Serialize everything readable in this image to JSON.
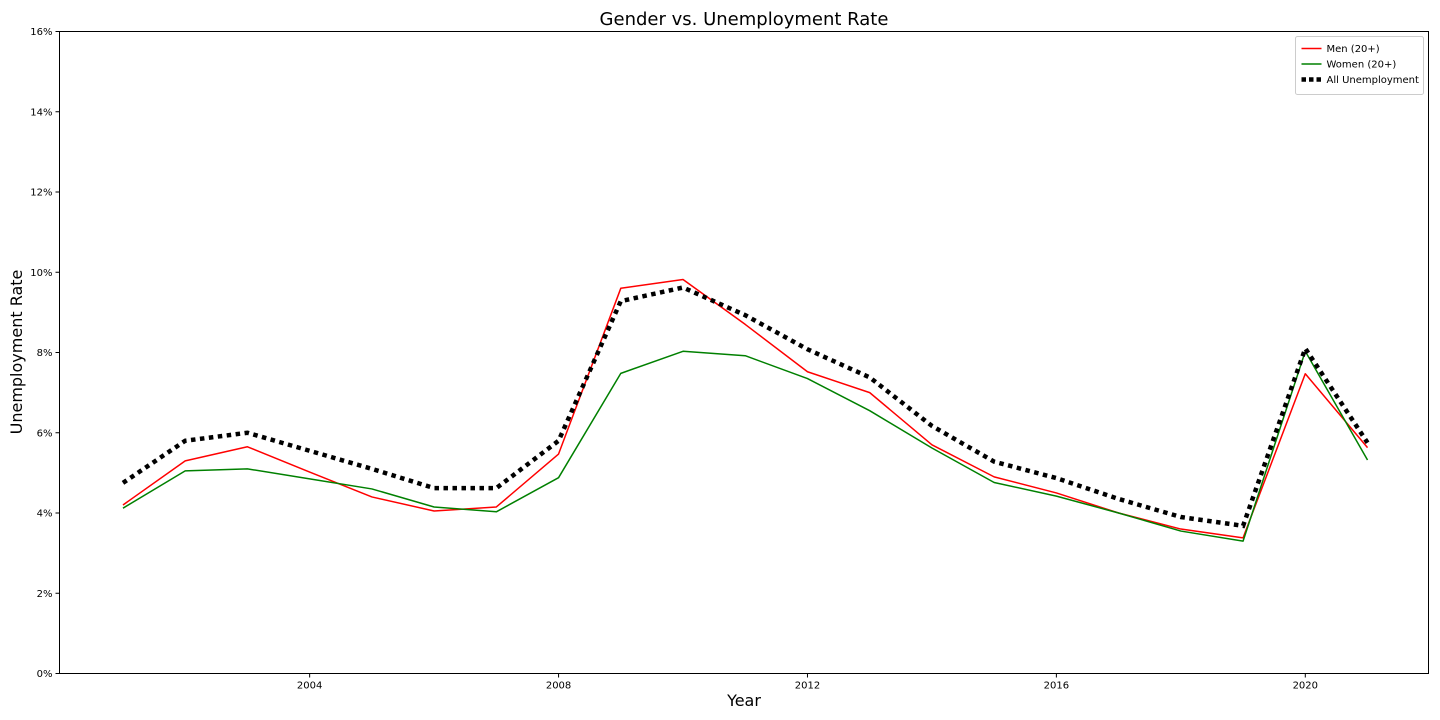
{
  "chart_data": {
    "type": "line",
    "title": "Gender vs. Unemployment Rate",
    "xlabel": "Year",
    "ylabel": "Unemployment Rate",
    "x": [
      2001,
      2002,
      2003,
      2004,
      2005,
      2006,
      2007,
      2008,
      2009,
      2010,
      2011,
      2012,
      2013,
      2014,
      2015,
      2016,
      2017,
      2018,
      2019,
      2020,
      2021
    ],
    "xlim": [
      1999.98,
      2021.98
    ],
    "ylim": [
      0,
      16
    ],
    "xticks": [
      2004,
      2008,
      2012,
      2016,
      2020
    ],
    "xtick_labels": [
      "2004",
      "2008",
      "2012",
      "2016",
      "2020"
    ],
    "yticks": [
      0,
      2,
      4,
      6,
      8,
      10,
      12,
      14,
      16
    ],
    "ytick_labels": [
      "0%",
      "2%",
      "4%",
      "6%",
      "8%",
      "10%",
      "12%",
      "14%",
      "16%"
    ],
    "grid": false,
    "legend_position": "top-right",
    "series": [
      {
        "name": "Men (20+)",
        "color": "#ff0000",
        "style": "solid",
        "values": [
          4.2,
          5.3,
          5.65,
          5.02,
          4.4,
          4.05,
          4.15,
          5.47,
          9.6,
          9.82,
          8.7,
          7.52,
          7.0,
          5.7,
          4.9,
          4.5,
          4.0,
          3.6,
          3.38,
          7.47,
          5.63
        ]
      },
      {
        "name": "Women (20+)",
        "color": "#008000",
        "style": "solid",
        "values": [
          4.12,
          5.05,
          5.1,
          4.85,
          4.6,
          4.15,
          4.03,
          4.88,
          7.48,
          8.03,
          7.92,
          7.35,
          6.55,
          5.62,
          4.76,
          4.42,
          4.0,
          3.55,
          3.3,
          8.03,
          5.32
        ]
      },
      {
        "name": "All Unemployment",
        "color": "#000000",
        "style": "dotted",
        "values": [
          4.75,
          5.8,
          6.0,
          5.55,
          5.1,
          4.62,
          4.62,
          5.8,
          9.28,
          9.62,
          8.93,
          8.08,
          7.38,
          6.17,
          5.28,
          4.87,
          4.35,
          3.9,
          3.68,
          8.1,
          5.75
        ]
      }
    ]
  }
}
